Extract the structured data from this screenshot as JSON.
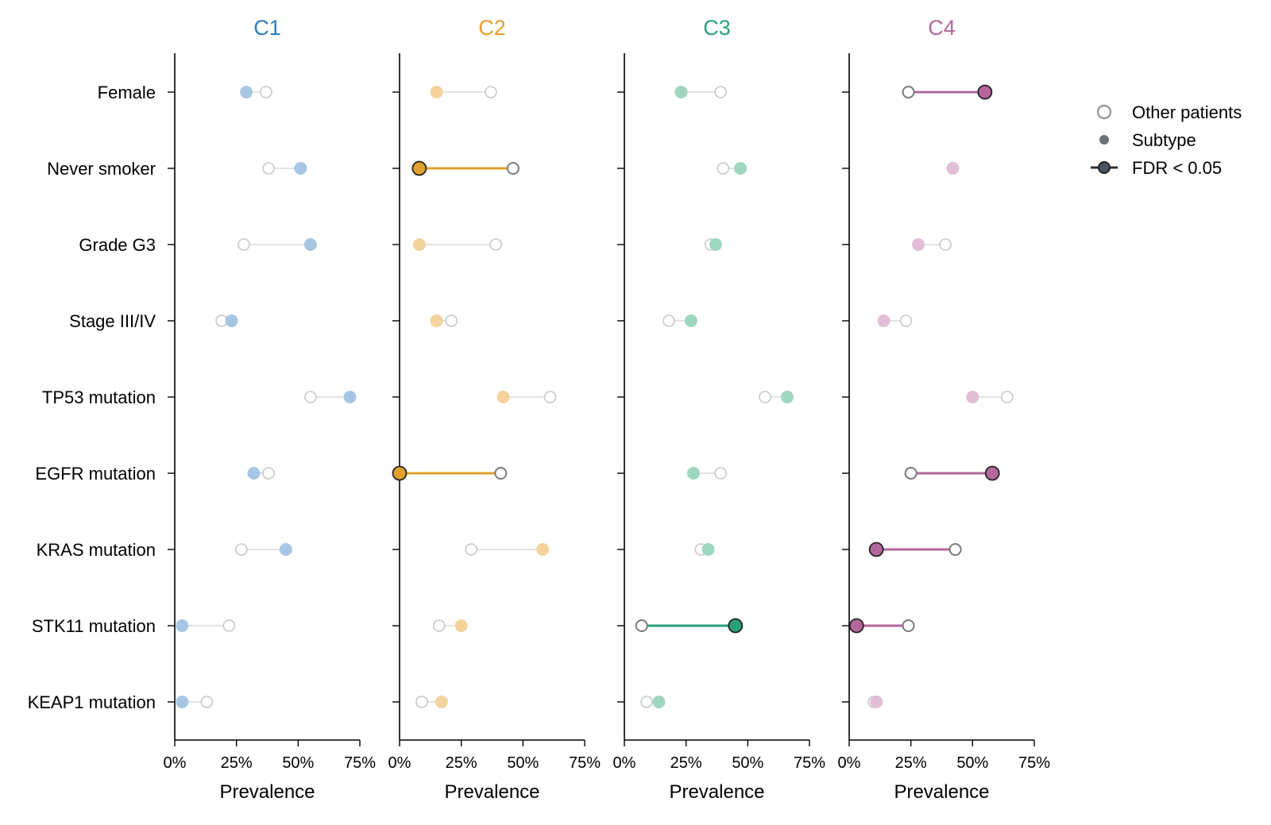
{
  "chart_data": {
    "type": "dumbbell",
    "row_labels": [
      "Female",
      "Never smoker",
      "Grade G3",
      "Stage III/IV",
      "TP53 mutation",
      "EGFR mutation",
      "KRAS mutation",
      "STK11 mutation",
      "KEAP1 mutation"
    ],
    "x_ticks": [
      "0%",
      "25%",
      "50%",
      "75%"
    ],
    "xlabel": "Prevalence",
    "xlim": [
      0,
      0.75
    ],
    "legend": {
      "position": "top-right",
      "entries": [
        "Other patients",
        "Subtype",
        "FDR < 0.05"
      ]
    },
    "panels": [
      {
        "name": "C1",
        "color": "#2b7bba",
        "light_color": "#a7c6e3",
        "rows": [
          {
            "subtype": 0.29,
            "other": 0.37,
            "significant": false
          },
          {
            "subtype": 0.51,
            "other": 0.38,
            "significant": false
          },
          {
            "subtype": 0.55,
            "other": 0.28,
            "significant": false
          },
          {
            "subtype": 0.23,
            "other": 0.19,
            "significant": false
          },
          {
            "subtype": 0.71,
            "other": 0.55,
            "significant": false
          },
          {
            "subtype": 0.32,
            "other": 0.38,
            "significant": false
          },
          {
            "subtype": 0.45,
            "other": 0.27,
            "significant": false
          },
          {
            "subtype": 0.03,
            "other": 0.22,
            "significant": false
          },
          {
            "subtype": 0.03,
            "other": 0.13,
            "significant": false
          }
        ]
      },
      {
        "name": "C2",
        "color": "#e0a02d",
        "light_color": "#f3d29c",
        "rows": [
          {
            "subtype": 0.15,
            "other": 0.37,
            "significant": false
          },
          {
            "subtype": 0.08,
            "other": 0.46,
            "significant": true
          },
          {
            "subtype": 0.08,
            "other": 0.39,
            "significant": false
          },
          {
            "subtype": 0.15,
            "other": 0.21,
            "significant": false
          },
          {
            "subtype": 0.42,
            "other": 0.61,
            "significant": false
          },
          {
            "subtype": 0.0,
            "other": 0.41,
            "significant": true
          },
          {
            "subtype": 0.58,
            "other": 0.29,
            "significant": false
          },
          {
            "subtype": 0.25,
            "other": 0.16,
            "significant": false
          },
          {
            "subtype": 0.17,
            "other": 0.09,
            "significant": false
          }
        ]
      },
      {
        "name": "C3",
        "color": "#2b9f78",
        "light_color": "#9fd6c0",
        "rows": [
          {
            "subtype": 0.23,
            "other": 0.39,
            "significant": false
          },
          {
            "subtype": 0.47,
            "other": 0.4,
            "significant": false
          },
          {
            "subtype": 0.37,
            "other": 0.35,
            "significant": false
          },
          {
            "subtype": 0.27,
            "other": 0.18,
            "significant": false
          },
          {
            "subtype": 0.66,
            "other": 0.57,
            "significant": false
          },
          {
            "subtype": 0.28,
            "other": 0.39,
            "significant": false
          },
          {
            "subtype": 0.34,
            "other": 0.31,
            "significant": false
          },
          {
            "subtype": 0.45,
            "other": 0.07,
            "significant": true
          },
          {
            "subtype": 0.14,
            "other": 0.09,
            "significant": false
          }
        ]
      },
      {
        "name": "C4",
        "color": "#b3679c",
        "light_color": "#e2bdd6",
        "rows": [
          {
            "subtype": 0.55,
            "other": 0.24,
            "significant": true
          },
          {
            "subtype": 0.42,
            "other": 0.42,
            "significant": false
          },
          {
            "subtype": 0.28,
            "other": 0.39,
            "significant": false
          },
          {
            "subtype": 0.14,
            "other": 0.23,
            "significant": false
          },
          {
            "subtype": 0.5,
            "other": 0.64,
            "significant": false
          },
          {
            "subtype": 0.58,
            "other": 0.25,
            "significant": true
          },
          {
            "subtype": 0.11,
            "other": 0.43,
            "significant": true
          },
          {
            "subtype": 0.03,
            "other": 0.24,
            "significant": true
          },
          {
            "subtype": 0.11,
            "other": 0.1,
            "significant": false
          }
        ]
      }
    ]
  }
}
